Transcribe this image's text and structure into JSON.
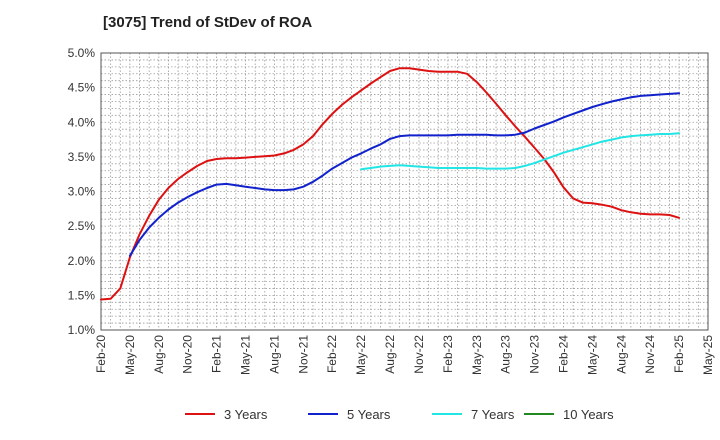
{
  "chart_data": {
    "type": "line",
    "title": "[3075]  Trend of StDev of ROA",
    "xlabel": "",
    "ylabel": "",
    "x_ticks": [
      "Feb-20",
      "May-20",
      "Aug-20",
      "Nov-20",
      "Feb-21",
      "May-21",
      "Aug-21",
      "Nov-21",
      "Feb-22",
      "May-22",
      "Aug-22",
      "Nov-22",
      "Feb-23",
      "May-23",
      "Aug-23",
      "Nov-23",
      "Feb-24",
      "May-24",
      "Aug-24",
      "Nov-24",
      "Feb-25",
      "May-25"
    ],
    "y_ticks": [
      "1.0%",
      "1.5%",
      "2.0%",
      "2.5%",
      "3.0%",
      "3.5%",
      "4.0%",
      "4.5%",
      "5.0%"
    ],
    "ylim": [
      1.0,
      5.0
    ],
    "grid": true,
    "legend_position": "bottom",
    "series": [
      {
        "name": "3 Years",
        "color": "#dd1111",
        "points": [
          [
            "Feb-20",
            1.44
          ],
          [
            "Mar-20",
            1.45
          ],
          [
            "Apr-20",
            1.6
          ],
          [
            "May-20",
            2.05
          ],
          [
            "Jun-20",
            2.38
          ],
          [
            "Jul-20",
            2.65
          ],
          [
            "Aug-20",
            2.88
          ],
          [
            "Sep-20",
            3.05
          ],
          [
            "Oct-20",
            3.18
          ],
          [
            "Nov-20",
            3.28
          ],
          [
            "Dec-20",
            3.37
          ],
          [
            "Jan-21",
            3.44
          ],
          [
            "Feb-21",
            3.47
          ],
          [
            "Mar-21",
            3.48
          ],
          [
            "Apr-21",
            3.48
          ],
          [
            "May-21",
            3.49
          ],
          [
            "Jun-21",
            3.5
          ],
          [
            "Jul-21",
            3.51
          ],
          [
            "Aug-21",
            3.52
          ],
          [
            "Sep-21",
            3.55
          ],
          [
            "Oct-21",
            3.6
          ],
          [
            "Nov-21",
            3.68
          ],
          [
            "Dec-21",
            3.8
          ],
          [
            "Jan-22",
            3.97
          ],
          [
            "Feb-22",
            4.12
          ],
          [
            "Mar-22",
            4.25
          ],
          [
            "Apr-22",
            4.36
          ],
          [
            "May-22",
            4.46
          ],
          [
            "Jun-22",
            4.56
          ],
          [
            "Jul-22",
            4.65
          ],
          [
            "Aug-22",
            4.74
          ],
          [
            "Sep-22",
            4.78
          ],
          [
            "Oct-22",
            4.78
          ],
          [
            "Nov-22",
            4.76
          ],
          [
            "Dec-22",
            4.74
          ],
          [
            "Jan-23",
            4.73
          ],
          [
            "Feb-23",
            4.73
          ],
          [
            "Mar-23",
            4.73
          ],
          [
            "Apr-23",
            4.7
          ],
          [
            "May-23",
            4.58
          ],
          [
            "Jun-23",
            4.43
          ],
          [
            "Jul-23",
            4.27
          ],
          [
            "Aug-23",
            4.1
          ],
          [
            "Sep-23",
            3.94
          ],
          [
            "Oct-23",
            3.79
          ],
          [
            "Nov-23",
            3.63
          ],
          [
            "Dec-23",
            3.47
          ],
          [
            "Jan-24",
            3.28
          ],
          [
            "Feb-24",
            3.06
          ],
          [
            "Mar-24",
            2.9
          ],
          [
            "Apr-24",
            2.84
          ],
          [
            "May-24",
            2.83
          ],
          [
            "Jun-24",
            2.81
          ],
          [
            "Jul-24",
            2.78
          ],
          [
            "Aug-24",
            2.73
          ],
          [
            "Sep-24",
            2.7
          ],
          [
            "Oct-24",
            2.68
          ],
          [
            "Nov-24",
            2.67
          ],
          [
            "Dec-24",
            2.67
          ],
          [
            "Jan-25",
            2.66
          ],
          [
            "Feb-25",
            2.62
          ]
        ]
      },
      {
        "name": "5 Years",
        "color": "#1122cc",
        "points": [
          [
            "May-20",
            2.07
          ],
          [
            "Jun-20",
            2.3
          ],
          [
            "Jul-20",
            2.48
          ],
          [
            "Aug-20",
            2.62
          ],
          [
            "Sep-20",
            2.74
          ],
          [
            "Oct-20",
            2.84
          ],
          [
            "Nov-20",
            2.92
          ],
          [
            "Dec-20",
            2.99
          ],
          [
            "Jan-21",
            3.05
          ],
          [
            "Feb-21",
            3.1
          ],
          [
            "Mar-21",
            3.11
          ],
          [
            "Apr-21",
            3.09
          ],
          [
            "May-21",
            3.07
          ],
          [
            "Jun-21",
            3.05
          ],
          [
            "Jul-21",
            3.03
          ],
          [
            "Aug-21",
            3.02
          ],
          [
            "Sep-21",
            3.02
          ],
          [
            "Oct-21",
            3.03
          ],
          [
            "Nov-21",
            3.07
          ],
          [
            "Dec-21",
            3.14
          ],
          [
            "Jan-22",
            3.23
          ],
          [
            "Feb-22",
            3.33
          ],
          [
            "Mar-22",
            3.41
          ],
          [
            "Apr-22",
            3.49
          ],
          [
            "May-22",
            3.55
          ],
          [
            "Jun-22",
            3.62
          ],
          [
            "Jul-22",
            3.68
          ],
          [
            "Aug-22",
            3.76
          ],
          [
            "Sep-22",
            3.8
          ],
          [
            "Oct-22",
            3.81
          ],
          [
            "Nov-22",
            3.81
          ],
          [
            "Dec-22",
            3.81
          ],
          [
            "Jan-23",
            3.81
          ],
          [
            "Feb-23",
            3.81
          ],
          [
            "Mar-23",
            3.82
          ],
          [
            "Apr-23",
            3.82
          ],
          [
            "May-23",
            3.82
          ],
          [
            "Jun-23",
            3.82
          ],
          [
            "Jul-23",
            3.81
          ],
          [
            "Aug-23",
            3.81
          ],
          [
            "Sep-23",
            3.82
          ],
          [
            "Oct-23",
            3.85
          ],
          [
            "Nov-23",
            3.91
          ],
          [
            "Dec-23",
            3.96
          ],
          [
            "Jan-24",
            4.01
          ],
          [
            "Feb-24",
            4.07
          ],
          [
            "Mar-24",
            4.12
          ],
          [
            "Apr-24",
            4.17
          ],
          [
            "May-24",
            4.22
          ],
          [
            "Jun-24",
            4.26
          ],
          [
            "Jul-24",
            4.3
          ],
          [
            "Aug-24",
            4.33
          ],
          [
            "Sep-24",
            4.36
          ],
          [
            "Oct-24",
            4.38
          ],
          [
            "Nov-24",
            4.39
          ],
          [
            "Dec-24",
            4.4
          ],
          [
            "Jan-25",
            4.41
          ],
          [
            "Feb-25",
            4.42
          ]
        ]
      },
      {
        "name": "7 Years",
        "color": "#22e5e5",
        "points": [
          [
            "May-22",
            3.32
          ],
          [
            "Jun-22",
            3.34
          ],
          [
            "Jul-22",
            3.36
          ],
          [
            "Aug-22",
            3.37
          ],
          [
            "Sep-22",
            3.38
          ],
          [
            "Oct-22",
            3.37
          ],
          [
            "Nov-22",
            3.36
          ],
          [
            "Dec-22",
            3.35
          ],
          [
            "Jan-23",
            3.34
          ],
          [
            "Feb-23",
            3.34
          ],
          [
            "Mar-23",
            3.34
          ],
          [
            "Apr-23",
            3.34
          ],
          [
            "May-23",
            3.34
          ],
          [
            "Jun-23",
            3.33
          ],
          [
            "Jul-23",
            3.33
          ],
          [
            "Aug-23",
            3.33
          ],
          [
            "Sep-23",
            3.34
          ],
          [
            "Oct-23",
            3.37
          ],
          [
            "Nov-23",
            3.41
          ],
          [
            "Dec-23",
            3.46
          ],
          [
            "Jan-24",
            3.51
          ],
          [
            "Feb-24",
            3.56
          ],
          [
            "Mar-24",
            3.6
          ],
          [
            "Apr-24",
            3.64
          ],
          [
            "May-24",
            3.68
          ],
          [
            "Jun-24",
            3.72
          ],
          [
            "Jul-24",
            3.75
          ],
          [
            "Aug-24",
            3.78
          ],
          [
            "Sep-24",
            3.8
          ],
          [
            "Oct-24",
            3.81
          ],
          [
            "Nov-24",
            3.82
          ],
          [
            "Dec-24",
            3.83
          ],
          [
            "Jan-25",
            3.83
          ],
          [
            "Feb-25",
            3.84
          ]
        ]
      },
      {
        "name": "10 Years",
        "color": "#228822",
        "points": []
      }
    ]
  }
}
